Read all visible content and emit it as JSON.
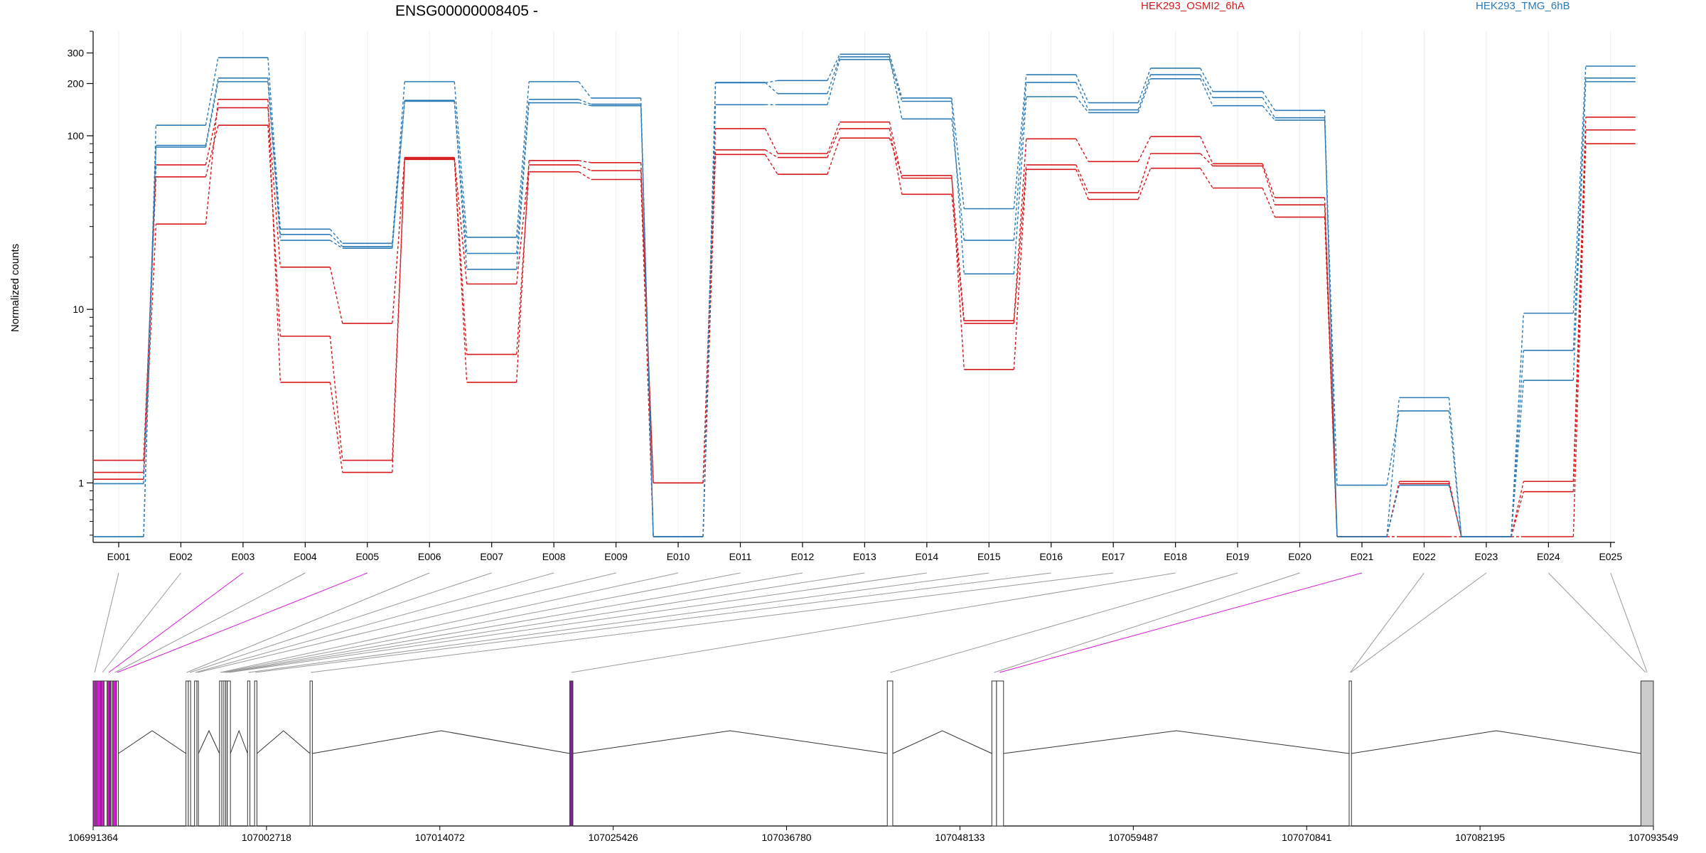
{
  "chart_data": {
    "type": "line",
    "title": "ENSG00000008405 -",
    "ylabel": "Normalized counts",
    "yscale": "log",
    "yticks": [
      1,
      10,
      100,
      200,
      300
    ],
    "ylim": [
      0.49,
      400
    ],
    "grid": "vertical",
    "legend_position": "top",
    "categories": [
      "E001",
      "E002",
      "E003",
      "E004",
      "E005",
      "E006",
      "E007",
      "E008",
      "E009",
      "E010",
      "E011",
      "E012",
      "E013",
      "E014",
      "E015",
      "E016",
      "E017",
      "E018",
      "E019",
      "E020",
      "E021",
      "E022",
      "E023",
      "E024",
      "E025"
    ],
    "colors": {
      "HEK293_OSMI2_6hA": "#d7191c",
      "HEK293_TMG_6hB": "#2c7bb6",
      "highlight": "#d61ad6"
    },
    "series": [
      {
        "name": "HEK293_OSMI2_6hA",
        "condition": "HEK293_OSMI2_6hA",
        "values": [
          1.35,
          58,
          115,
          7,
          1.35,
          73,
          5.5,
          62,
          56,
          0.49,
          78,
          60,
          97,
          59,
          4.5,
          64,
          43,
          65,
          50,
          34,
          0.49,
          0.49,
          0.49,
          0.49,
          90
        ]
      },
      {
        "name": "HEK293_OSMI2_6hA",
        "condition": "HEK293_OSMI2_6hA",
        "values": [
          1.15,
          68,
          145,
          17.5,
          8.3,
          75,
          14,
          68,
          63,
          1,
          83,
          75,
          110,
          46,
          8.3,
          68,
          47,
          79,
          67,
          40,
          0.49,
          1.02,
          0.49,
          0.89,
          108
        ]
      },
      {
        "name": "HEK293_OSMI2_6hA",
        "condition": "HEK293_OSMI2_6hA",
        "values": [
          1.05,
          31,
          162,
          3.8,
          1.15,
          74,
          3.8,
          72,
          70,
          1,
          110,
          79,
          120,
          57,
          8.6,
          96,
          71,
          99,
          69,
          44,
          0.49,
          0.99,
          0.49,
          1.02,
          128
        ]
      },
      {
        "name": "HEK293_TMG_6hB",
        "condition": "HEK293_TMG_6hB",
        "values": [
          0.99,
          86,
          205,
          25,
          22.5,
          158,
          17,
          155,
          149,
          0.49,
          151,
          151,
          275,
          158,
          16,
          168,
          136,
          213,
          149,
          123,
          0.97,
          2.6,
          0.49,
          3.9,
          205
        ]
      },
      {
        "name": "HEK293_TMG_6hB",
        "condition": "HEK293_TMG_6hB",
        "values": [
          0.49,
          88,
          215,
          27,
          23,
          160,
          21,
          162,
          152,
          0.49,
          203,
          175,
          285,
          125,
          25,
          203,
          141,
          225,
          166,
          127,
          0.49,
          0.97,
          0.49,
          5.8,
          215
        ]
      },
      {
        "name": "HEK293_TMG_6hB",
        "condition": "HEK293_TMG_6hB",
        "values": [
          0.49,
          115,
          282,
          29,
          24,
          205,
          26,
          205,
          165,
          0.49,
          202,
          208,
          295,
          165,
          38,
          225,
          155,
          245,
          180,
          140,
          0.49,
          3.1,
          0.49,
          9.5,
          252
        ]
      }
    ],
    "exon_colors": [
      "#999999",
      "#999999",
      "#d61ad6",
      "#999999",
      "#d61ad6",
      "#999999",
      "#999999",
      "#999999",
      "#999999",
      "#999999",
      "#999999",
      "#999999",
      "#999999",
      "#999999",
      "#999999",
      "#999999",
      "#999999",
      "#999999",
      "#999999",
      "#999999",
      "#d61ad6",
      "#999999",
      "#999999",
      "#999999",
      "#999999"
    ],
    "gene_model": {
      "genomic_ticks": [
        "106991364",
        "107002718",
        "107014072",
        "107025426",
        "107036780",
        "107048133",
        "107059487",
        "107070841",
        "107082195",
        "107093549"
      ],
      "exons": [
        {
          "start": 0.0,
          "end": 0.15,
          "fill": "#d61ad6"
        },
        {
          "start": 0.15,
          "end": 0.22,
          "fill": "#ffffff"
        },
        {
          "start": 0.22,
          "end": 0.5,
          "fill": "#d61ad6"
        },
        {
          "start": 0.5,
          "end": 0.7,
          "fill": "#d61ad6"
        },
        {
          "start": 0.7,
          "end": 0.9,
          "fill": "#ffffff"
        },
        {
          "start": 0.9,
          "end": 1.05,
          "fill": "#d61ad6"
        },
        {
          "start": 1.05,
          "end": 1.15,
          "fill": "#d61ad6"
        },
        {
          "start": 1.15,
          "end": 1.25,
          "fill": "#ffffff"
        },
        {
          "start": 1.25,
          "end": 1.5,
          "fill": "#d61ad6"
        },
        {
          "start": 1.5,
          "end": 1.62,
          "fill": "#ffffff"
        },
        {
          "start": 5.95,
          "end": 6.1,
          "fill": "#ffffff"
        },
        {
          "start": 6.1,
          "end": 6.25,
          "fill": "#ffffff"
        },
        {
          "start": 6.5,
          "end": 6.65,
          "fill": "#ffffff"
        },
        {
          "start": 6.65,
          "end": 6.75,
          "fill": "#ffffff"
        },
        {
          "start": 8.1,
          "end": 8.25,
          "fill": "#ffffff"
        },
        {
          "start": 8.25,
          "end": 8.38,
          "fill": "#ffffff"
        },
        {
          "start": 8.38,
          "end": 8.5,
          "fill": "#ffffff"
        },
        {
          "start": 8.5,
          "end": 8.6,
          "fill": "#ffffff"
        },
        {
          "start": 8.6,
          "end": 8.8,
          "fill": "#ffffff"
        },
        {
          "start": 9.9,
          "end": 10.05,
          "fill": "#ffffff"
        },
        {
          "start": 10.35,
          "end": 10.5,
          "fill": "#ffffff"
        },
        {
          "start": 13.9,
          "end": 14.05,
          "fill": "#ffffff"
        },
        {
          "start": 30.55,
          "end": 30.75,
          "fill": "#7a2b8f"
        },
        {
          "start": 50.9,
          "end": 51.25,
          "fill": "#ffffff"
        },
        {
          "start": 57.6,
          "end": 57.9,
          "fill": "#ffffff"
        },
        {
          "start": 57.9,
          "end": 58.35,
          "fill": "#ffffff"
        },
        {
          "start": 80.5,
          "end": 80.65,
          "fill": "#ffffff"
        },
        {
          "start": 99.2,
          "end": 100.0,
          "fill": "#cccccc"
        }
      ],
      "exon_connect_pos": [
        0.1,
        0.6,
        1.0,
        1.4,
        1.55,
        6.0,
        6.2,
        6.55,
        6.7,
        8.15,
        8.3,
        8.45,
        8.55,
        8.7,
        9.95,
        10.4,
        13.95,
        30.65,
        51.1,
        57.75,
        58.1,
        80.57,
        80.6,
        99.5,
        99.6
      ]
    }
  }
}
